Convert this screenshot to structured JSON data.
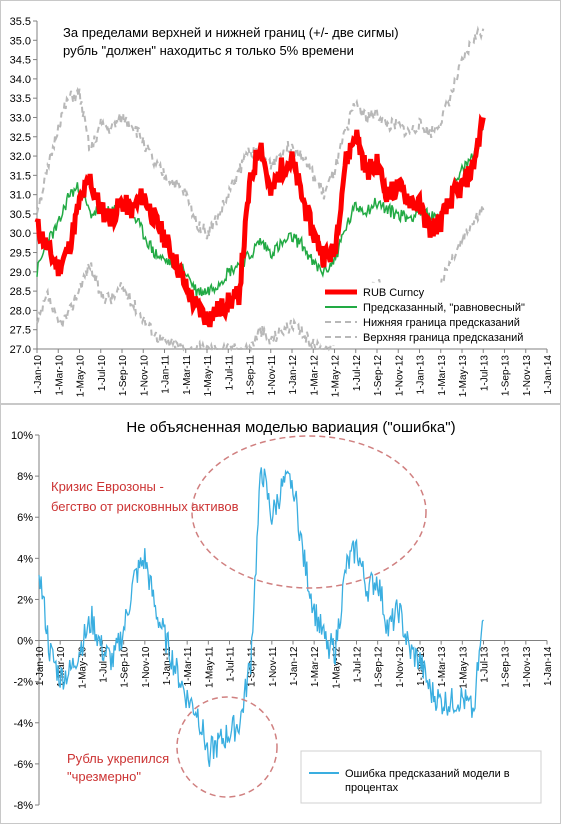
{
  "chart_data": [
    {
      "type": "line",
      "annotation": [
        "За пределами верхней и нижней границ (+/- две сигмы)",
        "рубль \"должен\"  находитьс я только 5% времени"
      ],
      "xlabel": "",
      "ylabel": "",
      "ylim": [
        27.0,
        35.5
      ],
      "yticks": [
        "27.0",
        "27.5",
        "28.0",
        "28.5",
        "29.0",
        "29.5",
        "30.0",
        "30.5",
        "31.0",
        "31.5",
        "32.0",
        "32.5",
        "33.0",
        "33.5",
        "34.0",
        "34.5",
        "35.0",
        "35.5"
      ],
      "xticks": [
        "1-Jan-10",
        "1-Mar-10",
        "1-May-10",
        "1-Jul-10",
        "1-Sep-10",
        "1-Nov-10",
        "1-Jan-11",
        "1-Mar-11",
        "1-May-11",
        "1-Jul-11",
        "1-Sep-11",
        "1-Nov-11",
        "1-Jan-12",
        "1-Mar-12",
        "1-May-12",
        "1-Jul-12",
        "1-Sep-12",
        "1-Nov-12",
        "1-Jan-13",
        "1-Mar-13",
        "1-May-13",
        "1-Jul-13",
        "1-Sep-13",
        "1-Nov-13",
        "1-Jan-14"
      ],
      "xrange_months": [
        0,
        48
      ],
      "legend_position": "bottom-right",
      "series": [
        {
          "name": "RUB Curncy",
          "color": "#ff0000",
          "style": "thick",
          "x": [
            0,
            1,
            2,
            3,
            4,
            5,
            6,
            7,
            8,
            9,
            10,
            11,
            12,
            13,
            14,
            15,
            16,
            17,
            18,
            19,
            20,
            21,
            22,
            23,
            24,
            25,
            26,
            27,
            28,
            29,
            30,
            31,
            32,
            33,
            34,
            35,
            36,
            37,
            38,
            39,
            40,
            41,
            42
          ],
          "values": [
            30.2,
            29.6,
            29.1,
            29.6,
            30.8,
            31.4,
            30.6,
            30.4,
            30.8,
            30.6,
            31.0,
            30.4,
            29.9,
            29.3,
            28.6,
            28.1,
            27.8,
            28.0,
            28.2,
            28.4,
            31.2,
            32.4,
            31.0,
            31.7,
            31.9,
            30.9,
            30.0,
            29.4,
            29.5,
            31.8,
            32.6,
            31.6,
            31.8,
            31.0,
            31.2,
            30.9,
            30.7,
            30.1,
            30.3,
            30.9,
            31.2,
            31.7,
            33.0
          ]
        },
        {
          "name": "Предсказанный, \"равновесный\"",
          "color": "#22aa44",
          "style": "thin",
          "x": [
            0,
            1,
            2,
            3,
            4,
            5,
            6,
            7,
            8,
            9,
            10,
            11,
            12,
            13,
            14,
            15,
            16,
            17,
            18,
            19,
            20,
            21,
            22,
            23,
            24,
            25,
            26,
            27,
            28,
            29,
            30,
            31,
            32,
            33,
            34,
            35,
            36,
            37,
            38,
            39,
            40,
            41,
            42
          ],
          "values": [
            29.0,
            29.8,
            30.2,
            31.0,
            31.2,
            30.5,
            30.6,
            30.5,
            30.8,
            30.5,
            30.0,
            29.5,
            29.3,
            29.2,
            29.0,
            28.5,
            28.5,
            28.7,
            29.0,
            29.2,
            29.4,
            29.8,
            29.5,
            29.7,
            29.9,
            29.7,
            29.2,
            29.0,
            29.3,
            30.1,
            30.7,
            30.6,
            30.8,
            30.6,
            30.5,
            30.4,
            30.6,
            30.4,
            30.5,
            31.0,
            31.6,
            32.0,
            32.7
          ]
        },
        {
          "name": "Нижняя граница предсказаний",
          "color": "#b8b8b8",
          "style": "dashed",
          "x": [
            0,
            1,
            2,
            3,
            4,
            5,
            6,
            7,
            8,
            9,
            10,
            11,
            12,
            13,
            14,
            15,
            16,
            17,
            18,
            19,
            20,
            21,
            22,
            23,
            24,
            25,
            26,
            27,
            28,
            29,
            30,
            31,
            32,
            33,
            34,
            35,
            36,
            37,
            38,
            39,
            40,
            41,
            42
          ],
          "values": [
            27.6,
            28.4,
            27.6,
            27.9,
            28.6,
            29.2,
            28.4,
            28.3,
            28.6,
            28.2,
            27.8,
            27.4,
            27.2,
            27.1,
            27.0,
            27.0,
            27.0,
            27.0,
            27.0,
            27.0,
            27.0,
            27.5,
            27.2,
            27.5,
            27.6,
            27.4,
            27.1,
            27.0,
            27.2,
            28.0,
            28.6,
            28.4,
            28.7,
            28.5,
            28.3,
            28.2,
            28.4,
            28.3,
            28.7,
            29.3,
            29.8,
            30.3,
            30.6
          ]
        },
        {
          "name": "Верхняя граница предсказаний",
          "color": "#b8b8b8",
          "style": "dashed",
          "x": [
            0,
            1,
            2,
            3,
            4,
            5,
            6,
            7,
            8,
            9,
            10,
            11,
            12,
            13,
            14,
            15,
            16,
            17,
            18,
            19,
            20,
            21,
            22,
            23,
            24,
            25,
            26,
            27,
            28,
            29,
            30,
            31,
            32,
            33,
            34,
            35,
            36,
            37,
            38,
            39,
            40,
            41,
            42
          ],
          "values": [
            30.6,
            31.6,
            32.8,
            33.5,
            33.6,
            32.1,
            32.8,
            32.7,
            33.0,
            32.8,
            32.4,
            31.8,
            31.5,
            31.3,
            31.0,
            30.3,
            30.0,
            30.4,
            31.0,
            31.6,
            32.2,
            32.0,
            31.8,
            32.1,
            32.3,
            32.0,
            31.5,
            31.0,
            31.6,
            32.6,
            33.4,
            33.0,
            33.1,
            32.8,
            32.8,
            32.6,
            32.8,
            32.6,
            32.9,
            33.6,
            34.4,
            35.0,
            35.3
          ]
        }
      ]
    },
    {
      "type": "line",
      "title": "Не объясненная моделью  вариация (\"ошибка\")",
      "ylim": [
        -8,
        10
      ],
      "yticks": [
        "-8%",
        "-6%",
        "-4%",
        "-2%",
        "0%",
        "2%",
        "4%",
        "6%",
        "8%",
        "10%"
      ],
      "xticks": [
        "1-Jan-10",
        "1-Mar-10",
        "1-May-10",
        "1-Jul-10",
        "1-Sep-10",
        "1-Nov-10",
        "1-Jan-11",
        "1-Mar-11",
        "1-May-11",
        "1-Jul-11",
        "1-Sep-11",
        "1-Nov-11",
        "1-Jan-12",
        "1-Mar-12",
        "1-May-12",
        "1-Jul-12",
        "1-Sep-12",
        "1-Nov-12",
        "1-Jan-13",
        "1-Mar-13",
        "1-May-13",
        "1-Jul-13",
        "1-Sep-13",
        "1-Nov-13",
        "1-Jan-14"
      ],
      "xrange_months": [
        0,
        48
      ],
      "legend_position": "bottom-right",
      "annotations": [
        {
          "text": [
            "Кризис Еврозоны -",
            "бегство от рисковнных активов"
          ],
          "color": "#cc3333"
        },
        {
          "text": [
            "Рубль укрепился",
            "\"чрезмерно\""
          ],
          "color": "#cc3333"
        }
      ],
      "series": [
        {
          "name": "Ошибка предсказаний модели в процентах",
          "color": "#3aaee0",
          "x": [
            0,
            1,
            2,
            3,
            4,
            5,
            6,
            7,
            8,
            9,
            10,
            11,
            12,
            13,
            14,
            15,
            16,
            17,
            18,
            19,
            20,
            21,
            22,
            23,
            24,
            25,
            26,
            27,
            28,
            29,
            30,
            31,
            32,
            33,
            34,
            35,
            36,
            37,
            38,
            39,
            40,
            41,
            42
          ],
          "values": [
            3.5,
            -0.5,
            -1.8,
            -1.5,
            -0.2,
            1.0,
            -0.5,
            -1.0,
            0.5,
            3.0,
            4.0,
            1.5,
            0.0,
            -1.5,
            -2.8,
            -3.5,
            -5.5,
            -5.0,
            -4.5,
            -4.0,
            -1.0,
            8.5,
            6.0,
            7.5,
            7.8,
            4.0,
            1.5,
            0.0,
            -0.5,
            3.5,
            4.5,
            2.5,
            3.0,
            0.5,
            1.5,
            -0.5,
            -1.0,
            -2.5,
            -3.0,
            -3.0,
            -2.8,
            -3.5,
            1.0
          ]
        }
      ]
    }
  ]
}
